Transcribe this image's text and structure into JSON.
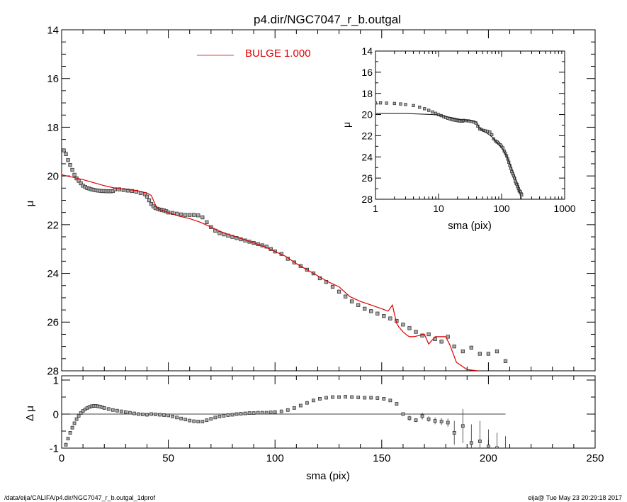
{
  "title": "p4.dir/NGC7047_r_b.outgal",
  "footer": {
    "left": "/data/eija/CALIFA/p4.dir/NGC7047_r_b.outgal_1dprof",
    "right": "eija@  Tue May 23 20:29:18 2017"
  },
  "colors": {
    "model": "#dd0000",
    "data": "#555555",
    "axis": "#000000"
  },
  "legend": {
    "label": "BULGE  1.000"
  },
  "chart_data": [
    {
      "id": "main",
      "type": "scatter",
      "ylabel": "μ",
      "xlim": [
        0,
        250
      ],
      "ylim": [
        28,
        14
      ],
      "y_inverted": true,
      "yticks": [
        14,
        16,
        18,
        20,
        22,
        24,
        26,
        28
      ],
      "series": [
        {
          "name": "BULGE  1.000",
          "kind": "line",
          "x": [
            0,
            10,
            20,
            25,
            30,
            35,
            40,
            42,
            43,
            44,
            45,
            50,
            55,
            60,
            65,
            70,
            75,
            80,
            85,
            90,
            95,
            100,
            105,
            110,
            115,
            120,
            125,
            130,
            135,
            140,
            145,
            150,
            153,
            155,
            157,
            158,
            160,
            162,
            163,
            165,
            170,
            172,
            175,
            180,
            182,
            185,
            190,
            195
          ],
          "y": [
            19.95,
            20.15,
            20.4,
            20.5,
            20.55,
            20.6,
            20.7,
            20.8,
            21.0,
            21.2,
            21.35,
            21.5,
            21.65,
            21.75,
            21.9,
            22.1,
            22.3,
            22.45,
            22.6,
            22.75,
            22.9,
            23.1,
            23.3,
            23.6,
            23.85,
            24.1,
            24.35,
            24.55,
            24.95,
            25.15,
            25.3,
            25.45,
            25.55,
            25.3,
            26.05,
            26.2,
            26.4,
            26.55,
            26.6,
            26.6,
            26.5,
            26.9,
            26.6,
            26.6,
            26.95,
            27.65,
            27.95,
            28.0
          ]
        },
        {
          "name": "",
          "kind": "points",
          "x": [
            1,
            2,
            3,
            4,
            5,
            6,
            7,
            8,
            9,
            10,
            11,
            12,
            13,
            14,
            15,
            16,
            17,
            18,
            19,
            20,
            21,
            22,
            23,
            24,
            25,
            27,
            29,
            31,
            33,
            35,
            37,
            39,
            40,
            41,
            42,
            43,
            44,
            45,
            46,
            47,
            48,
            49,
            50,
            52,
            54,
            56,
            58,
            60,
            62,
            64,
            66,
            68,
            70,
            72,
            74,
            76,
            78,
            80,
            82,
            84,
            86,
            88,
            90,
            92,
            94,
            96,
            98,
            100,
            103,
            106,
            109,
            112,
            115,
            118,
            121,
            124,
            127,
            130,
            133,
            136,
            139,
            142,
            145,
            148,
            151,
            154,
            157,
            160,
            163,
            166,
            169,
            172,
            175,
            178,
            181,
            184,
            188,
            192,
            196,
            200,
            204,
            208
          ],
          "y": [
            18.95,
            19.1,
            19.35,
            19.55,
            19.75,
            19.95,
            20.1,
            20.2,
            20.3,
            20.4,
            20.45,
            20.5,
            20.52,
            20.55,
            20.57,
            20.59,
            20.6,
            20.61,
            20.62,
            20.62,
            20.63,
            20.63,
            20.63,
            20.62,
            20.55,
            20.55,
            20.58,
            20.6,
            20.62,
            20.65,
            20.7,
            20.75,
            20.85,
            21.0,
            21.15,
            21.25,
            21.32,
            21.35,
            21.38,
            21.4,
            21.42,
            21.45,
            21.5,
            21.52,
            21.55,
            21.58,
            21.6,
            21.6,
            21.6,
            21.62,
            21.7,
            21.9,
            22.1,
            22.25,
            22.35,
            22.4,
            22.45,
            22.5,
            22.55,
            22.6,
            22.65,
            22.7,
            22.75,
            22.8,
            22.85,
            22.9,
            23.0,
            23.1,
            23.2,
            23.4,
            23.55,
            23.7,
            23.85,
            24.0,
            24.2,
            24.35,
            24.55,
            24.75,
            24.95,
            25.15,
            25.3,
            25.45,
            25.55,
            25.65,
            25.75,
            25.85,
            25.95,
            26.1,
            26.25,
            26.4,
            26.55,
            26.5,
            26.7,
            26.8,
            26.6,
            27.0,
            27.2,
            27.05,
            27.3,
            27.3,
            27.2,
            27.6
          ]
        }
      ]
    },
    {
      "id": "residual",
      "type": "scatter",
      "xlabel": "sma (pix)",
      "ylabel": "Δ μ",
      "xlim": [
        0,
        250
      ],
      "ylim": [
        -1,
        1
      ],
      "xticks": [
        0,
        50,
        100,
        150,
        200,
        250
      ],
      "yticks": [
        -1,
        0,
        1
      ],
      "zero_line_xmax": 208,
      "series": [
        {
          "name": "",
          "kind": "points",
          "x": [
            1,
            2,
            3,
            4,
            5,
            6,
            7,
            8,
            9,
            10,
            11,
            12,
            13,
            14,
            15,
            16,
            17,
            18,
            19,
            20,
            22,
            24,
            26,
            28,
            30,
            32,
            34,
            36,
            38,
            40,
            42,
            44,
            46,
            48,
            50,
            52,
            54,
            56,
            58,
            60,
            62,
            64,
            66,
            68,
            70,
            72,
            74,
            76,
            78,
            80,
            82,
            84,
            86,
            88,
            90,
            92,
            94,
            96,
            98,
            100,
            103,
            106,
            109,
            112,
            115,
            118,
            121,
            124,
            127,
            130,
            133,
            136,
            139,
            142,
            145,
            148,
            151,
            154,
            157,
            160,
            163,
            166,
            169,
            172,
            175,
            178,
            181,
            184,
            188,
            192,
            196,
            200,
            204,
            208
          ],
          "y": [
            -1.05,
            -0.9,
            -0.72,
            -0.55,
            -0.4,
            -0.27,
            -0.15,
            -0.05,
            0.03,
            0.09,
            0.14,
            0.18,
            0.21,
            0.23,
            0.24,
            0.24,
            0.23,
            0.22,
            0.2,
            0.18,
            0.15,
            0.12,
            0.1,
            0.08,
            0.06,
            0.04,
            0.02,
            0.0,
            -0.01,
            -0.02,
            0.0,
            -0.01,
            -0.02,
            -0.03,
            -0.04,
            -0.07,
            -0.1,
            -0.13,
            -0.16,
            -0.19,
            -0.21,
            -0.22,
            -0.22,
            -0.18,
            -0.14,
            -0.1,
            -0.07,
            -0.05,
            -0.03,
            -0.02,
            0.0,
            0.01,
            0.02,
            0.03,
            0.03,
            0.04,
            0.04,
            0.04,
            0.05,
            0.06,
            0.08,
            0.12,
            0.18,
            0.25,
            0.33,
            0.4,
            0.45,
            0.48,
            0.5,
            0.5,
            0.51,
            0.5,
            0.49,
            0.48,
            0.48,
            0.47,
            0.45,
            0.4,
            0.3,
            0.0,
            -0.12,
            -0.18,
            -0.06,
            -0.15,
            -0.2,
            -0.22,
            -0.25,
            -0.55,
            -0.35,
            -0.85,
            -0.8,
            -0.95,
            -1.0,
            -1.05
          ],
          "err": [
            0,
            0,
            0,
            0,
            0,
            0,
            0,
            0,
            0,
            0,
            0,
            0,
            0,
            0,
            0,
            0,
            0,
            0,
            0,
            0,
            0,
            0,
            0,
            0,
            0,
            0,
            0,
            0,
            0,
            0,
            0,
            0,
            0,
            0,
            0,
            0,
            0,
            0,
            0,
            0,
            0,
            0,
            0,
            0,
            0,
            0,
            0,
            0,
            0,
            0,
            0,
            0,
            0,
            0,
            0,
            0,
            0,
            0,
            0,
            0,
            0,
            0,
            0,
            0,
            0,
            0,
            0,
            0,
            0,
            0,
            0,
            0,
            0,
            0,
            0,
            0,
            0,
            0,
            0,
            0,
            0.08,
            0.05,
            0.1,
            0.08,
            0.1,
            0.1,
            0.12,
            0.35,
            0.5,
            0.55,
            0.6,
            0.5,
            0.45,
            0.4
          ]
        }
      ]
    },
    {
      "id": "inset",
      "type": "scatter",
      "xlabel": "sma (pix)",
      "ylabel": "μ",
      "xscale": "log",
      "xlim": [
        1,
        1000
      ],
      "ylim": [
        28,
        14
      ],
      "y_inverted": true,
      "xticks": [
        1,
        10,
        100,
        1000
      ],
      "yticks": [
        14,
        16,
        18,
        20,
        22,
        24,
        26,
        28
      ],
      "series": [
        {
          "name": "BULGE  1.000",
          "kind": "line",
          "x": [
            1,
            2,
            3,
            5,
            8,
            10,
            15,
            20,
            25,
            30,
            35,
            40,
            45,
            50,
            60,
            70,
            80,
            100,
            120,
            150,
            180,
            200,
            210
          ],
          "y": [
            19.9,
            19.9,
            19.9,
            19.95,
            20.0,
            20.05,
            20.25,
            20.4,
            20.5,
            20.55,
            20.6,
            20.7,
            21.3,
            21.5,
            21.8,
            22.1,
            22.5,
            23.1,
            23.9,
            25.3,
            26.6,
            27.7,
            28.1
          ]
        },
        {
          "name": "",
          "kind": "points",
          "x": [
            1,
            1.2,
            1.5,
            2,
            2.5,
            3,
            4,
            5,
            6,
            7,
            8,
            9,
            10,
            11,
            12,
            13,
            14,
            15,
            16,
            17,
            18,
            19,
            20,
            21,
            22,
            23,
            24,
            25,
            27,
            30,
            33,
            36,
            39,
            42,
            45,
            48,
            52,
            56,
            60,
            65,
            70,
            75,
            80,
            85,
            90,
            95,
            100,
            105,
            110,
            115,
            120,
            125,
            130,
            135,
            140,
            145,
            150,
            155,
            160,
            165,
            170,
            175,
            180,
            185,
            190,
            195,
            200,
            205,
            208
          ],
          "y": [
            18.9,
            18.9,
            18.92,
            18.95,
            19.0,
            19.05,
            19.15,
            19.3,
            19.45,
            19.6,
            19.75,
            19.88,
            20.0,
            20.1,
            20.2,
            20.28,
            20.35,
            20.4,
            20.45,
            20.5,
            20.52,
            20.55,
            20.57,
            20.6,
            20.6,
            20.62,
            20.62,
            20.55,
            20.58,
            20.6,
            20.65,
            20.7,
            20.8,
            21.1,
            21.35,
            21.42,
            21.5,
            21.55,
            21.6,
            21.65,
            21.9,
            22.3,
            22.5,
            22.6,
            22.7,
            22.85,
            23.0,
            23.15,
            23.45,
            23.65,
            23.9,
            24.2,
            24.5,
            24.8,
            25.1,
            25.4,
            25.6,
            25.8,
            26.0,
            26.3,
            26.5,
            26.6,
            26.8,
            27.0,
            27.2,
            27.3,
            27.3,
            27.5,
            27.6
          ]
        }
      ]
    }
  ]
}
